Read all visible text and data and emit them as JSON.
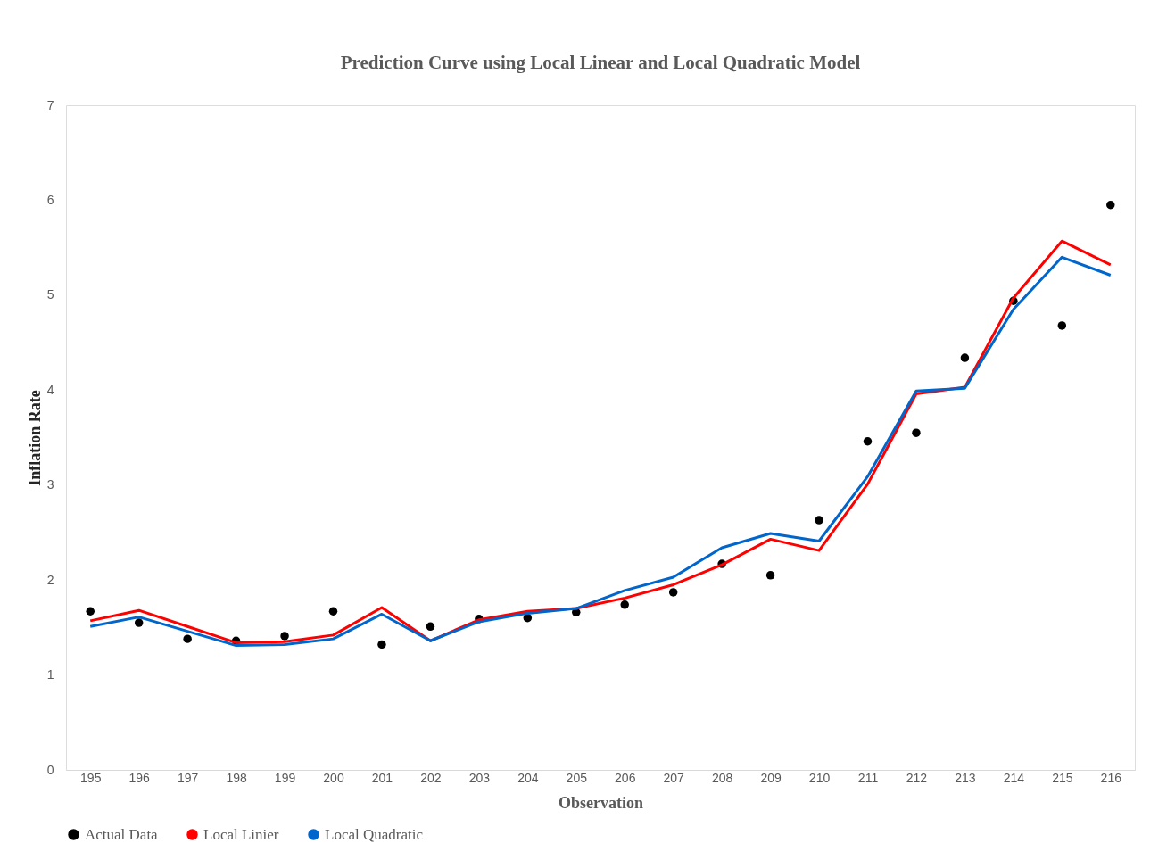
{
  "chart_data": {
    "type": "line",
    "title": "Prediction  Curve using Local Linear and Local Quadratic Model",
    "xlabel": "Observation",
    "ylabel": "Inflation Rate",
    "categories": [
      "195",
      "196",
      "197",
      "198",
      "199",
      "200",
      "201",
      "202",
      "203",
      "204",
      "205",
      "206",
      "207",
      "208",
      "209",
      "210",
      "211",
      "212",
      "213",
      "214",
      "215",
      "216"
    ],
    "series": [
      {
        "name": "Actual Data",
        "type": "scatter",
        "marker": "circle",
        "color": "#000000",
        "values": [
          1.67,
          1.55,
          1.38,
          1.36,
          1.41,
          1.67,
          1.32,
          1.51,
          1.59,
          1.6,
          1.66,
          1.74,
          1.87,
          2.17,
          2.05,
          2.63,
          3.46,
          3.55,
          4.34,
          4.94,
          4.68,
          5.95
        ]
      },
      {
        "name": "Local Linier",
        "color": "#ff0000",
        "values": [
          1.57,
          1.68,
          1.51,
          1.34,
          1.35,
          1.42,
          1.71,
          1.36,
          1.58,
          1.67,
          1.7,
          1.81,
          1.95,
          2.16,
          2.43,
          2.31,
          3.01,
          3.96,
          4.03,
          4.97,
          5.57,
          5.32
        ]
      },
      {
        "name": "Local Quadratic",
        "color": "#0066cc",
        "values": [
          1.51,
          1.61,
          1.46,
          1.31,
          1.32,
          1.38,
          1.64,
          1.36,
          1.56,
          1.65,
          1.7,
          1.89,
          2.03,
          2.34,
          2.49,
          2.41,
          3.09,
          3.99,
          4.02,
          4.85,
          5.4,
          5.21
        ]
      }
    ],
    "ylim": [
      0,
      7
    ],
    "yticks": [
      0,
      1,
      2,
      3,
      4,
      5,
      6,
      7
    ],
    "grid": false,
    "legend": "bottom",
    "line_style": "solid"
  }
}
